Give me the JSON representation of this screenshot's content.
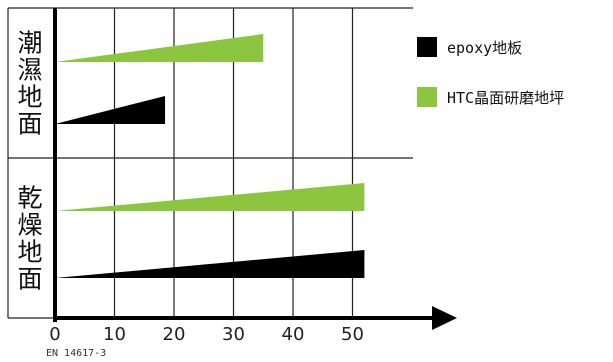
{
  "chart_data": {
    "type": "bar",
    "orientation": "horizontal",
    "bar_shape": "wedge",
    "x_ticks": [
      0,
      10,
      20,
      30,
      40,
      50
    ],
    "xlim": [
      0,
      58
    ],
    "grid": true,
    "groups": [
      {
        "label": "潮濕地面",
        "bars": [
          {
            "series": "HTC晶面研磨地坪",
            "value": 35
          },
          {
            "series": "epoxy地板",
            "value": 18.5
          }
        ]
      },
      {
        "label": "乾燥地面",
        "bars": [
          {
            "series": "HTC晶面研磨地坪",
            "value": 52
          },
          {
            "series": "epoxy地板",
            "value": 52
          }
        ]
      }
    ],
    "legend": {
      "placement": "right",
      "entries": [
        {
          "name": "epoxy地板",
          "color": "#000000"
        },
        {
          "name": "HTC晶面研磨地坪",
          "color": "#8cc63f"
        }
      ]
    },
    "footnote": "EN 14617-3"
  }
}
